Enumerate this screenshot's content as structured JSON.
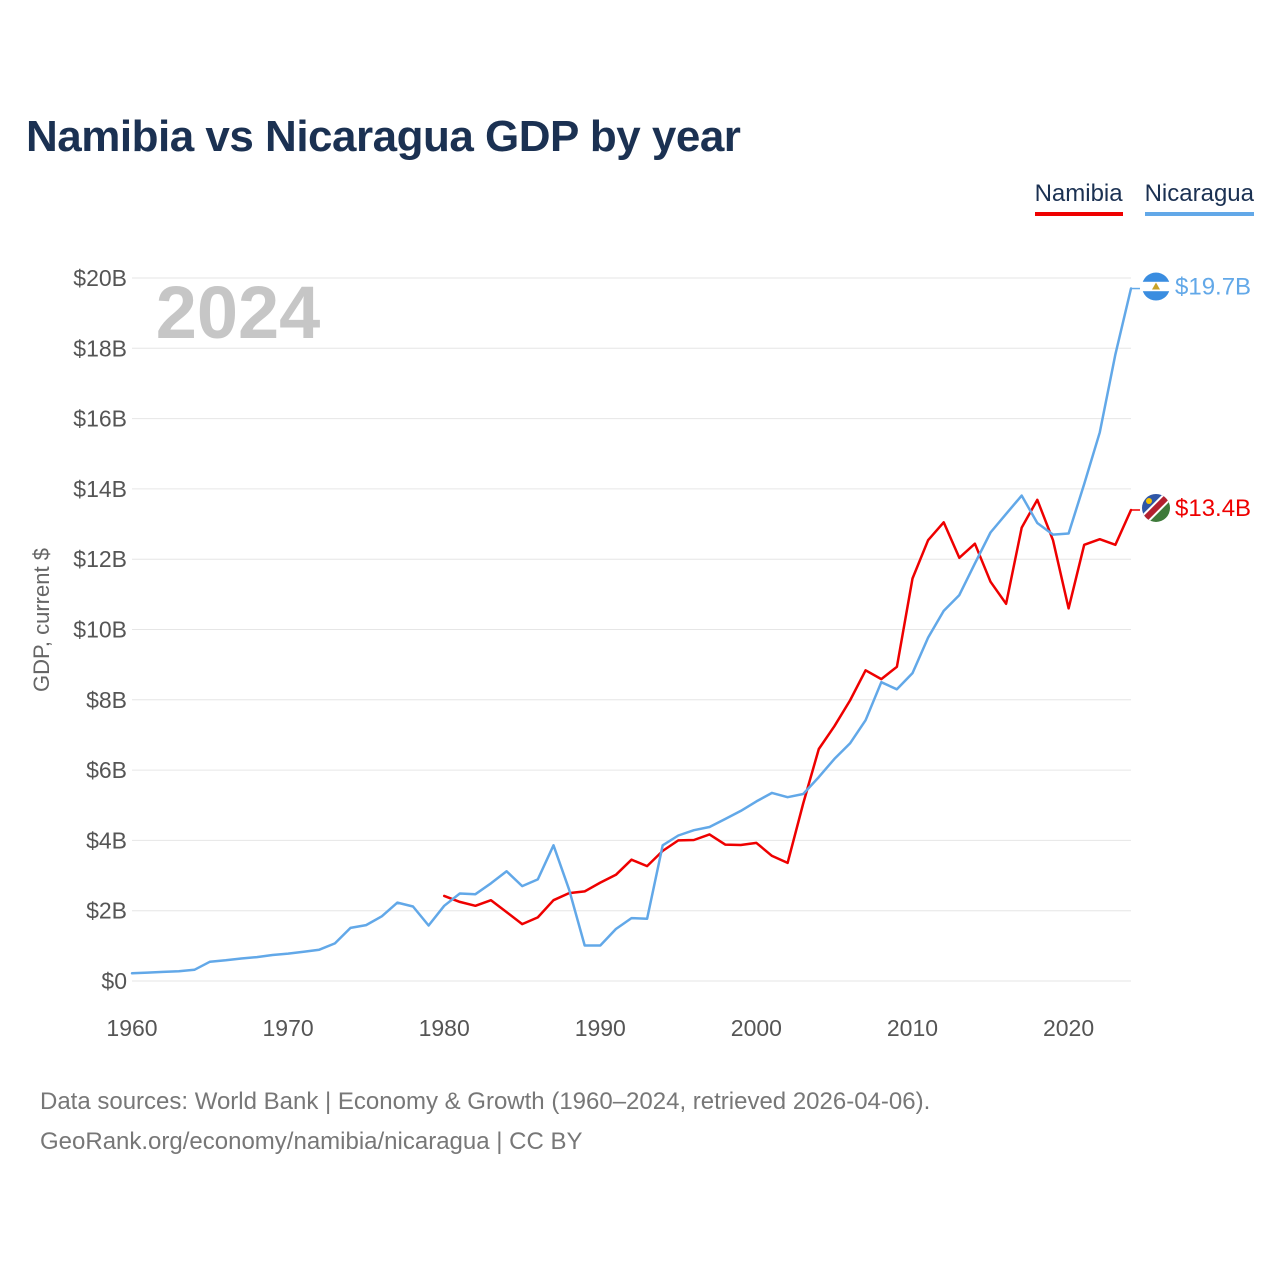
{
  "title": "Namibia vs Nicaragua GDP by year",
  "footer": {
    "line1": "Data sources: World Bank | Economy & Growth (1960–2024, retrieved 2026-04-06).",
    "line2": "GeoRank.org/economy/namibia/nicaragua | CC BY"
  },
  "chart_data": {
    "type": "line",
    "title": "Namibia vs Nicaragua GDP by year",
    "xlabel": "",
    "ylabel": "GDP, current $",
    "year_watermark": "2024",
    "xlim": [
      1960,
      2024
    ],
    "ylim": [
      0,
      20
    ],
    "x_ticks": [
      {
        "value": 1960,
        "label": "1960"
      },
      {
        "value": 1970,
        "label": "1970"
      },
      {
        "value": 1980,
        "label": "1980"
      },
      {
        "value": 1990,
        "label": "1990"
      },
      {
        "value": 2000,
        "label": "2000"
      },
      {
        "value": 2010,
        "label": "2010"
      },
      {
        "value": 2020,
        "label": "2020"
      }
    ],
    "y_ticks": [
      {
        "value": 0,
        "label": "$0"
      },
      {
        "value": 2,
        "label": "$2B"
      },
      {
        "value": 4,
        "label": "$4B"
      },
      {
        "value": 6,
        "label": "$6B"
      },
      {
        "value": 8,
        "label": "$8B"
      },
      {
        "value": 10,
        "label": "$10B"
      },
      {
        "value": 12,
        "label": "$12B"
      },
      {
        "value": 14,
        "label": "$14B"
      },
      {
        "value": 16,
        "label": "$16B"
      },
      {
        "value": 18,
        "label": "$18B"
      },
      {
        "value": 20,
        "label": "$20B"
      }
    ],
    "grid": true,
    "legend_position": "top-right",
    "series": [
      {
        "name": "Namibia",
        "color": "#ee0000",
        "flag_icon": "namibia-flag-icon",
        "end_label": "$13.4B",
        "x": [
          1980,
          1981,
          1982,
          1983,
          1984,
          1985,
          1986,
          1987,
          1988,
          1989,
          1990,
          1991,
          1992,
          1993,
          1994,
          1995,
          1996,
          1997,
          1998,
          1999,
          2000,
          2001,
          2002,
          2003,
          2004,
          2005,
          2006,
          2007,
          2008,
          2009,
          2010,
          2011,
          2012,
          2013,
          2014,
          2015,
          2016,
          2017,
          2018,
          2019,
          2020,
          2021,
          2022,
          2023,
          2024
        ],
        "values": [
          2.42,
          2.25,
          2.14,
          2.3,
          1.96,
          1.62,
          1.81,
          2.3,
          2.5,
          2.55,
          2.8,
          3.02,
          3.45,
          3.27,
          3.7,
          4.0,
          4.01,
          4.17,
          3.88,
          3.87,
          3.93,
          3.56,
          3.36,
          5.05,
          6.6,
          7.25,
          7.98,
          8.84,
          8.59,
          8.94,
          11.45,
          12.54,
          13.05,
          12.04,
          12.44,
          11.36,
          10.73,
          12.9,
          13.69,
          12.54,
          10.6,
          12.41,
          12.57,
          12.41,
          13.4
        ]
      },
      {
        "name": "Nicaragua",
        "color": "#62a8e8",
        "flag_icon": "nicaragua-flag-icon",
        "end_label": "$19.7B",
        "x": [
          1960,
          1961,
          1962,
          1963,
          1964,
          1965,
          1966,
          1967,
          1968,
          1969,
          1970,
          1971,
          1972,
          1973,
          1974,
          1975,
          1976,
          1977,
          1978,
          1979,
          1980,
          1981,
          1982,
          1983,
          1984,
          1985,
          1986,
          1987,
          1988,
          1989,
          1990,
          1991,
          1992,
          1993,
          1994,
          1995,
          1996,
          1997,
          1998,
          1999,
          2000,
          2001,
          2002,
          2003,
          2004,
          2005,
          2006,
          2007,
          2008,
          2009,
          2010,
          2011,
          2012,
          2013,
          2014,
          2015,
          2016,
          2017,
          2018,
          2019,
          2020,
          2021,
          2022,
          2023,
          2024
        ],
        "values": [
          0.22,
          0.24,
          0.26,
          0.28,
          0.32,
          0.55,
          0.59,
          0.64,
          0.68,
          0.74,
          0.78,
          0.83,
          0.89,
          1.07,
          1.51,
          1.59,
          1.84,
          2.23,
          2.12,
          1.58,
          2.14,
          2.49,
          2.47,
          2.78,
          3.12,
          2.7,
          2.89,
          3.86,
          2.6,
          1.01,
          1.01,
          1.48,
          1.79,
          1.77,
          3.86,
          4.14,
          4.29,
          4.38,
          4.61,
          4.84,
          5.11,
          5.35,
          5.23,
          5.32,
          5.8,
          6.32,
          6.76,
          7.42,
          8.5,
          8.3,
          8.76,
          9.77,
          10.53,
          10.98,
          11.88,
          12.76,
          13.29,
          13.81,
          13.03,
          12.7,
          12.73,
          14.14,
          15.61,
          17.83,
          19.7
        ]
      }
    ]
  }
}
